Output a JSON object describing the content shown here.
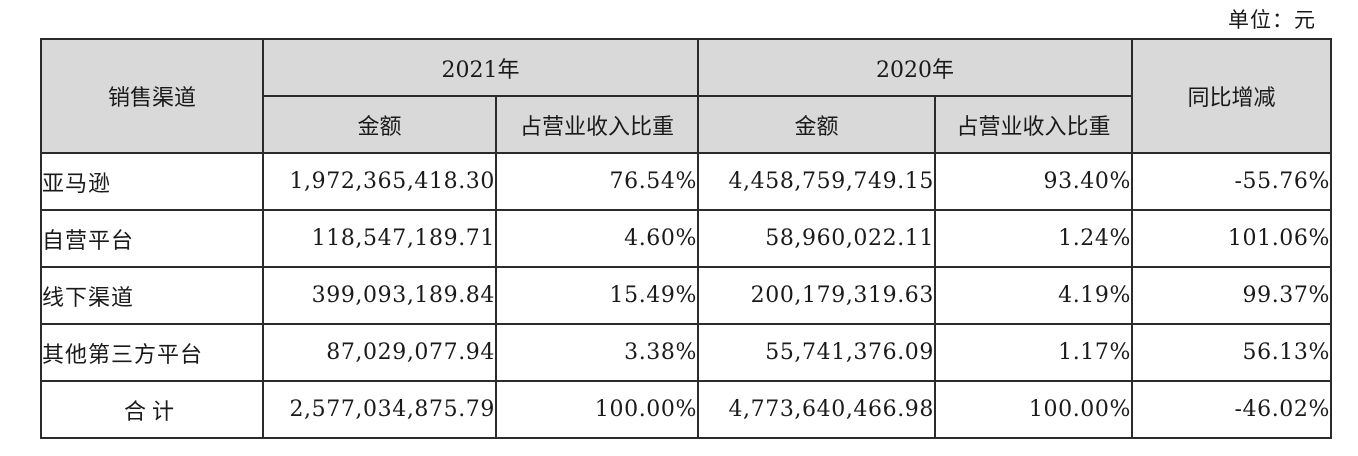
{
  "unit_label": "单位：元",
  "headers": {
    "channel": "销售渠道",
    "year_2021": "2021年",
    "year_2020": "2020年",
    "yoy": "同比增减",
    "amount": "金额",
    "share": "占营业收入比重"
  },
  "rows": [
    {
      "channel": "亚马逊",
      "amt_2021": "1,972,365,418.30",
      "share_2021": "76.54%",
      "amt_2020": "4,458,759,749.15",
      "share_2020": "93.40%",
      "yoy": "-55.76%"
    },
    {
      "channel": "自营平台",
      "amt_2021": "118,547,189.71",
      "share_2021": "4.60%",
      "amt_2020": "58,960,022.11",
      "share_2020": "1.24%",
      "yoy": "101.06%"
    },
    {
      "channel": "线下渠道",
      "amt_2021": "399,093,189.84",
      "share_2021": "15.49%",
      "amt_2020": "200,179,319.63",
      "share_2020": "4.19%",
      "yoy": "99.37%"
    },
    {
      "channel": "其他第三方平台",
      "amt_2021": "87,029,077.94",
      "share_2021": "3.38%",
      "amt_2020": "55,741,376.09",
      "share_2020": "1.17%",
      "yoy": "56.13%"
    },
    {
      "channel": "合计",
      "amt_2021": "2,577,034,875.79",
      "share_2021": "100.00%",
      "amt_2020": "4,773,640,466.98",
      "share_2020": "100.00%",
      "yoy": "-46.02%"
    }
  ]
}
